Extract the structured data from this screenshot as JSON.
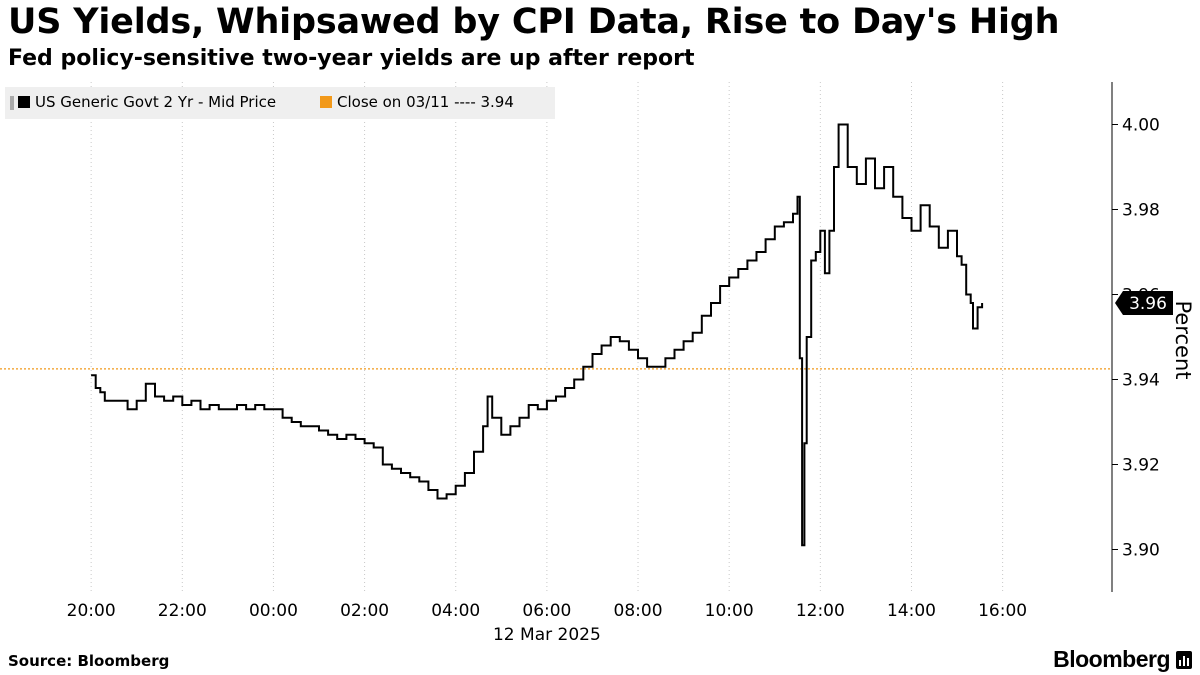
{
  "title": "US Yields, Whipsawed by CPI Data, Rise to Day's High",
  "subtitle": "Fed policy-sensitive two-year yields are up after report",
  "source": "Source: Bloomberg",
  "brand": "Bloomberg",
  "chart_data": {
    "type": "line",
    "x_unit": "hours since 20:00 on 11 Mar 2025",
    "xlim": [
      -2,
      22.4
    ],
    "ylim": [
      3.89,
      4.01
    ],
    "ylabel": "Percent",
    "grid": true,
    "legend_position": "top-left",
    "x_ticks": [
      {
        "value": 0,
        "label": "20:00"
      },
      {
        "value": 2,
        "label": "22:00"
      },
      {
        "value": 4,
        "label": "00:00"
      },
      {
        "value": 6,
        "label": "02:00"
      },
      {
        "value": 8,
        "label": "04:00"
      },
      {
        "value": 10,
        "label": "06:00"
      },
      {
        "value": 12,
        "label": "08:00"
      },
      {
        "value": 14,
        "label": "10:00"
      },
      {
        "value": 16,
        "label": "12:00"
      },
      {
        "value": 18,
        "label": "14:00"
      },
      {
        "value": 20,
        "label": "16:00"
      }
    ],
    "date_label": "12 Mar 2025",
    "y_ticks": [
      {
        "value": 3.9,
        "label": "3.90"
      },
      {
        "value": 3.92,
        "label": "3.92"
      },
      {
        "value": 3.94,
        "label": "3.94"
      },
      {
        "value": 3.96,
        "label": "3.96"
      },
      {
        "value": 3.98,
        "label": "3.98"
      },
      {
        "value": 4.0,
        "label": "4.00"
      }
    ],
    "series": [
      {
        "name": "US Generic Govt 2 Yr - Mid Price",
        "color": "#000000",
        "points": [
          [
            0.0,
            3.941
          ],
          [
            0.1,
            3.938
          ],
          [
            0.2,
            3.937
          ],
          [
            0.3,
            3.935
          ],
          [
            0.4,
            3.935
          ],
          [
            0.6,
            3.935
          ],
          [
            0.8,
            3.933
          ],
          [
            1.0,
            3.935
          ],
          [
            1.2,
            3.939
          ],
          [
            1.4,
            3.936
          ],
          [
            1.6,
            3.935
          ],
          [
            1.8,
            3.936
          ],
          [
            2.0,
            3.934
          ],
          [
            2.2,
            3.935
          ],
          [
            2.4,
            3.933
          ],
          [
            2.6,
            3.934
          ],
          [
            2.8,
            3.933
          ],
          [
            3.0,
            3.933
          ],
          [
            3.2,
            3.934
          ],
          [
            3.4,
            3.933
          ],
          [
            3.6,
            3.934
          ],
          [
            3.8,
            3.933
          ],
          [
            4.0,
            3.933
          ],
          [
            4.2,
            3.931
          ],
          [
            4.4,
            3.93
          ],
          [
            4.6,
            3.929
          ],
          [
            4.8,
            3.929
          ],
          [
            5.0,
            3.928
          ],
          [
            5.2,
            3.927
          ],
          [
            5.4,
            3.926
          ],
          [
            5.6,
            3.927
          ],
          [
            5.8,
            3.926
          ],
          [
            6.0,
            3.925
          ],
          [
            6.2,
            3.924
          ],
          [
            6.4,
            3.92
          ],
          [
            6.6,
            3.919
          ],
          [
            6.8,
            3.918
          ],
          [
            7.0,
            3.917
          ],
          [
            7.2,
            3.916
          ],
          [
            7.4,
            3.914
          ],
          [
            7.6,
            3.912
          ],
          [
            7.8,
            3.913
          ],
          [
            8.0,
            3.915
          ],
          [
            8.2,
            3.918
          ],
          [
            8.4,
            3.923
          ],
          [
            8.6,
            3.929
          ],
          [
            8.7,
            3.936
          ],
          [
            8.8,
            3.931
          ],
          [
            9.0,
            3.927
          ],
          [
            9.2,
            3.929
          ],
          [
            9.4,
            3.931
          ],
          [
            9.6,
            3.934
          ],
          [
            9.8,
            3.933
          ],
          [
            10.0,
            3.935
          ],
          [
            10.2,
            3.936
          ],
          [
            10.4,
            3.938
          ],
          [
            10.6,
            3.94
          ],
          [
            10.8,
            3.943
          ],
          [
            11.0,
            3.946
          ],
          [
            11.2,
            3.948
          ],
          [
            11.4,
            3.95
          ],
          [
            11.6,
            3.949
          ],
          [
            11.8,
            3.947
          ],
          [
            12.0,
            3.945
          ],
          [
            12.2,
            3.943
          ],
          [
            12.4,
            3.943
          ],
          [
            12.6,
            3.945
          ],
          [
            12.8,
            3.947
          ],
          [
            13.0,
            3.949
          ],
          [
            13.2,
            3.951
          ],
          [
            13.4,
            3.955
          ],
          [
            13.6,
            3.958
          ],
          [
            13.8,
            3.962
          ],
          [
            14.0,
            3.964
          ],
          [
            14.2,
            3.966
          ],
          [
            14.4,
            3.968
          ],
          [
            14.6,
            3.97
          ],
          [
            14.8,
            3.973
          ],
          [
            15.0,
            3.976
          ],
          [
            15.2,
            3.977
          ],
          [
            15.4,
            3.979
          ],
          [
            15.5,
            3.983
          ],
          [
            15.55,
            3.945
          ],
          [
            15.6,
            3.901
          ],
          [
            15.65,
            3.925
          ],
          [
            15.7,
            3.95
          ],
          [
            15.8,
            3.968
          ],
          [
            15.9,
            3.97
          ],
          [
            16.0,
            3.975
          ],
          [
            16.1,
            3.965
          ],
          [
            16.2,
            3.975
          ],
          [
            16.3,
            3.99
          ],
          [
            16.4,
            4.0
          ],
          [
            16.6,
            3.99
          ],
          [
            16.8,
            3.986
          ],
          [
            17.0,
            3.992
          ],
          [
            17.2,
            3.985
          ],
          [
            17.4,
            3.99
          ],
          [
            17.6,
            3.983
          ],
          [
            17.8,
            3.978
          ],
          [
            18.0,
            3.975
          ],
          [
            18.2,
            3.981
          ],
          [
            18.4,
            3.976
          ],
          [
            18.6,
            3.971
          ],
          [
            18.8,
            3.975
          ],
          [
            19.0,
            3.969
          ],
          [
            19.1,
            3.967
          ],
          [
            19.2,
            3.96
          ],
          [
            19.3,
            3.958
          ],
          [
            19.35,
            3.952
          ],
          [
            19.45,
            3.957
          ],
          [
            19.55,
            3.958
          ]
        ]
      },
      {
        "name": "Close on 03/11 ---- 3.94",
        "color": "#f2991a",
        "value": 3.9425
      }
    ],
    "last_value_label": "3.96",
    "last_value": 3.958
  }
}
